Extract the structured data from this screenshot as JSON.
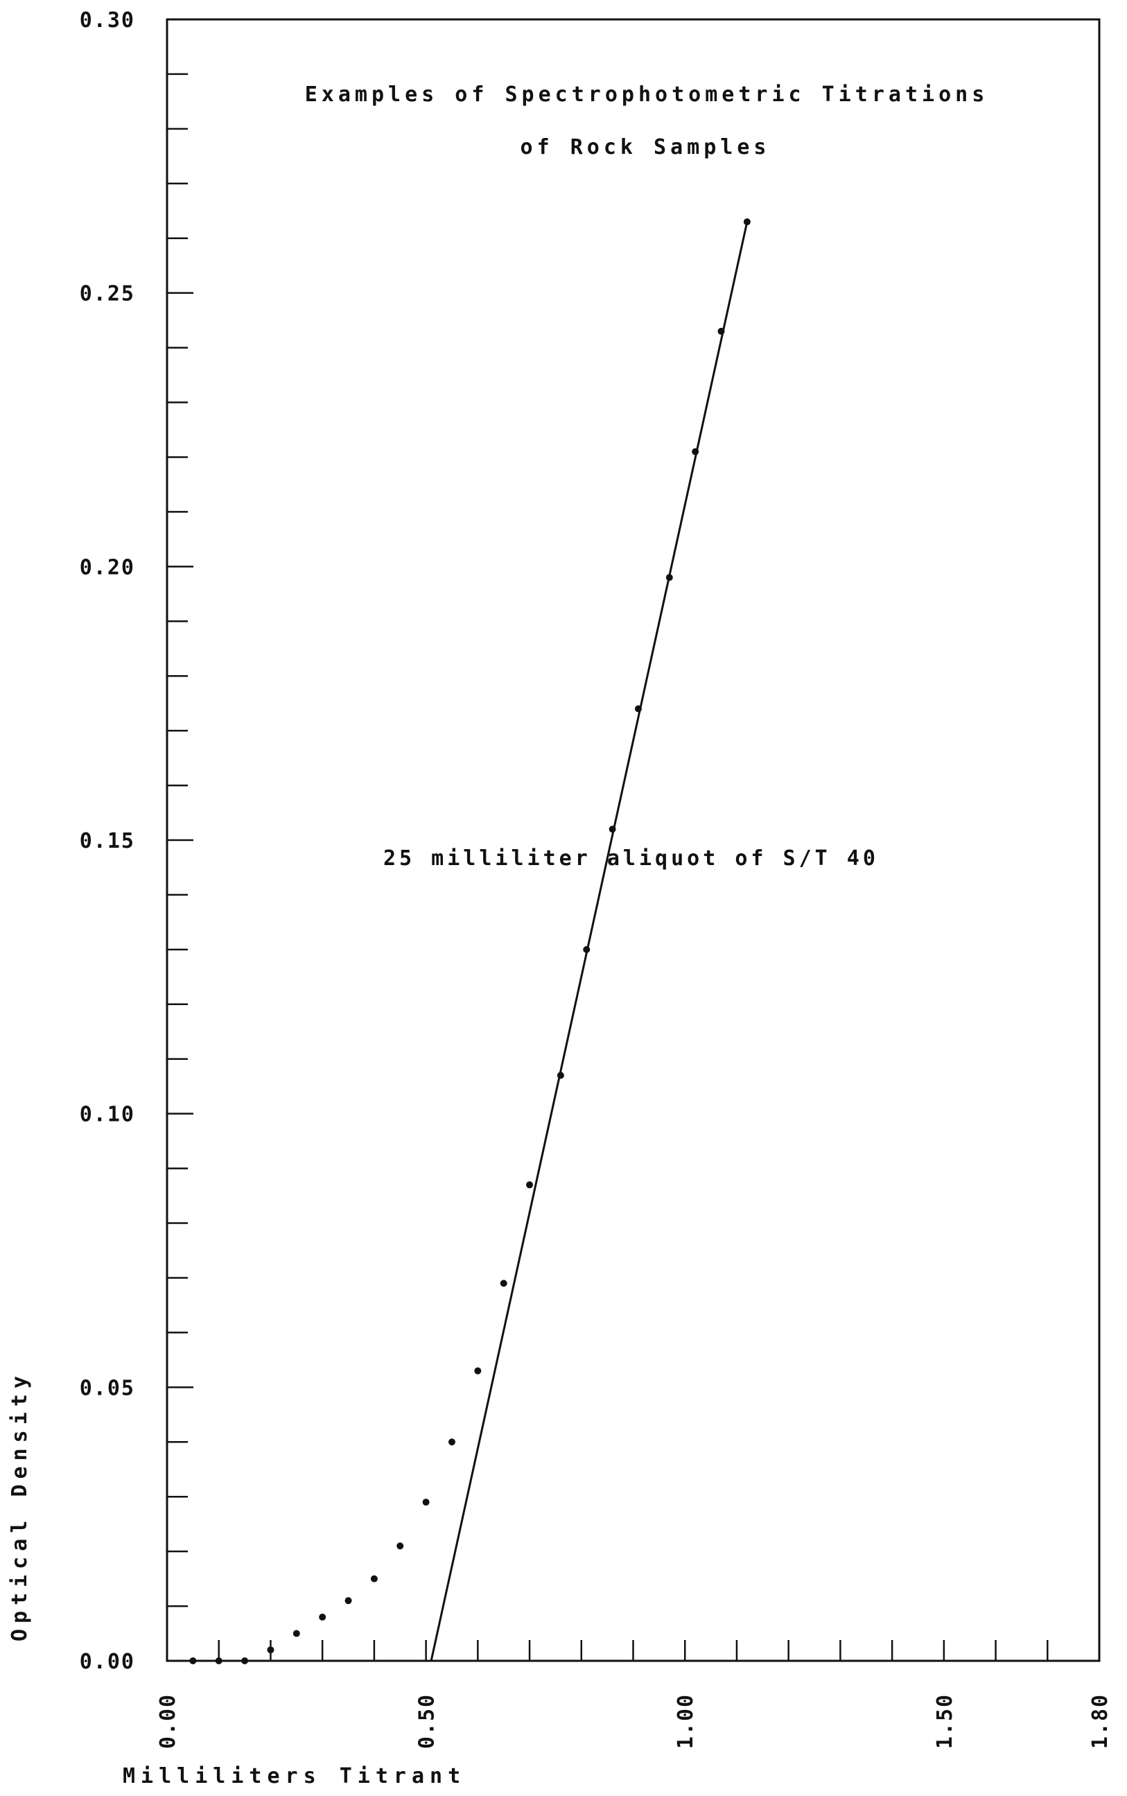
{
  "chart_data": {
    "type": "scatter",
    "title_lines": [
      "Examples of Spectrophotometric Titrations",
      "of Rock Samples"
    ],
    "xlabel": "Milliliters Titrant",
    "ylabel": "Optical Density",
    "xlim": [
      0.0,
      1.8
    ],
    "ylim": [
      0.0,
      0.3
    ],
    "x_ticks": [
      "0.00",
      "0.50",
      "1.00",
      "1.50",
      "1.80"
    ],
    "x_tick_values": [
      0.0,
      0.5,
      1.0,
      1.5,
      1.8
    ],
    "y_ticks": [
      "0.00",
      "0.05",
      "0.10",
      "0.15",
      "0.20",
      "0.25",
      "0.30"
    ],
    "y_tick_values": [
      0.0,
      0.05,
      0.1,
      0.15,
      0.2,
      0.25,
      0.3
    ],
    "x_minor_step": 0.1,
    "y_minor_step": 0.01,
    "grid": false,
    "annotation": "25 milliliter aliquot of S/T 40",
    "series": [
      {
        "x": [
          0.05,
          0.1,
          0.15,
          0.2,
          0.25,
          0.3,
          0.35,
          0.4,
          0.45,
          0.5,
          0.55,
          0.6,
          0.65,
          0.7,
          0.76,
          0.81,
          0.86,
          0.91,
          0.97,
          1.02,
          1.07,
          1.12
        ],
        "y": [
          0.0,
          0.0,
          0.0,
          0.002,
          0.005,
          0.008,
          0.011,
          0.015,
          0.021,
          0.029,
          0.04,
          0.053,
          0.069,
          0.087,
          0.107,
          0.13,
          0.152,
          0.174,
          0.198,
          0.221,
          0.243,
          0.263
        ]
      }
    ],
    "fit_lines": [
      {
        "x": [
          0.0,
          0.55
        ],
        "y": [
          0.0,
          0.0
        ]
      },
      {
        "x": [
          0.51,
          1.12
        ],
        "y": [
          0.0,
          0.263
        ]
      }
    ]
  }
}
